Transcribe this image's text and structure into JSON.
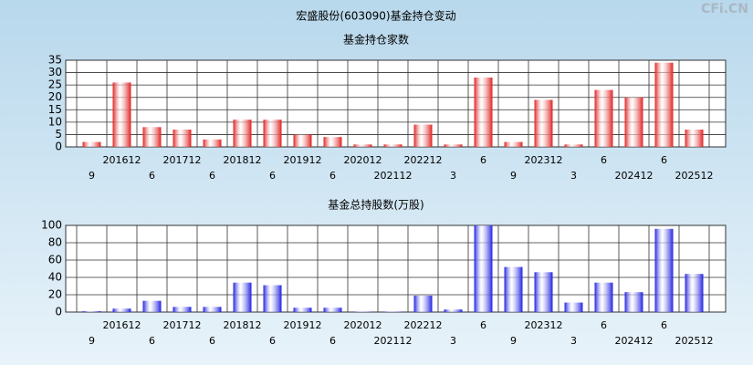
{
  "title": "宏盛股份(603090)基金持仓变动",
  "watermark": "CFi.CN",
  "chart_data": [
    {
      "type": "bar",
      "title": "基金持仓家数",
      "categories": [
        "9",
        "201612",
        "6",
        "201712",
        "6",
        "201812",
        "6",
        "201912",
        "6",
        "202012",
        "202112",
        "202212",
        "3",
        "6",
        "9",
        "202312",
        "3",
        "6",
        "202412",
        "6",
        "202512"
      ],
      "values": [
        2,
        26,
        8,
        7,
        3,
        11,
        11,
        5,
        4,
        1,
        1,
        9,
        1,
        28,
        2,
        19,
        1,
        23,
        20,
        34,
        7
      ],
      "color": "#e02020",
      "ylim": [
        0,
        35
      ],
      "yticks": [
        0,
        5,
        10,
        15,
        20,
        25,
        30,
        35
      ],
      "grid": true
    },
    {
      "type": "bar",
      "title": "基金总持股数(万股)",
      "categories": [
        "9",
        "201612",
        "6",
        "201712",
        "6",
        "201812",
        "6",
        "201912",
        "6",
        "202012",
        "202112",
        "202212",
        "3",
        "6",
        "9",
        "202312",
        "3",
        "6",
        "202412",
        "6",
        "202512"
      ],
      "values": [
        1,
        4,
        13,
        6,
        6,
        34,
        31,
        5,
        5,
        0.5,
        0.5,
        19,
        3,
        100,
        52,
        46,
        11,
        34,
        23,
        96,
        44
      ],
      "color": "#2020e0",
      "ylim": [
        0,
        100
      ],
      "yticks": [
        0,
        20,
        40,
        60,
        80,
        100
      ],
      "grid": true
    }
  ]
}
